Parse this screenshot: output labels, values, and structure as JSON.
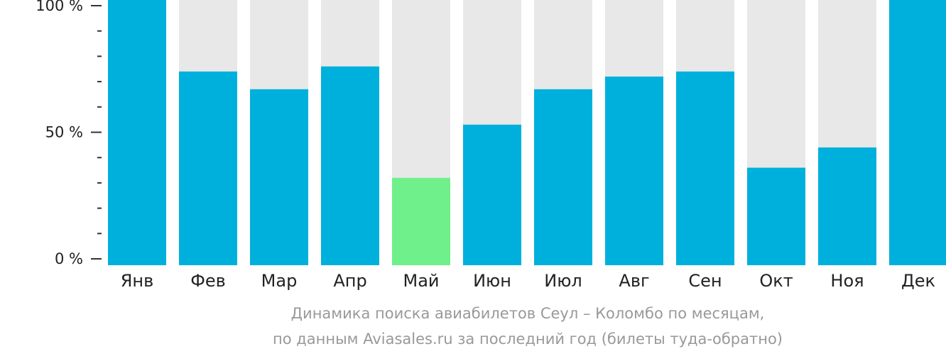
{
  "chart_data": {
    "type": "bar",
    "categories": [
      "Янв",
      "Фев",
      "Мар",
      "Апр",
      "Май",
      "Июн",
      "Июл",
      "Авг",
      "Сен",
      "Окт",
      "Ноя",
      "Дек"
    ],
    "values": [
      100,
      74,
      67,
      76,
      32,
      53,
      67,
      72,
      74,
      36,
      44,
      100
    ],
    "ylim": [
      0,
      100
    ],
    "yticks": [
      {
        "value": 0,
        "label": "0 %"
      },
      {
        "value": 50,
        "label": "50 %"
      },
      {
        "value": 100,
        "label": "100 %"
      }
    ],
    "minor_tick_step": 10,
    "highlight_index": 4,
    "colors": {
      "bar": "#00b0dc",
      "highlight": "#6ff08b",
      "track": "#e8e8e8"
    }
  },
  "caption": {
    "line1": "Динамика поиска авиабилетов Сеул – Коломбо по месяцам,",
    "line2": "по данным Aviasales.ru за последний год (билеты туда-обратно)"
  }
}
